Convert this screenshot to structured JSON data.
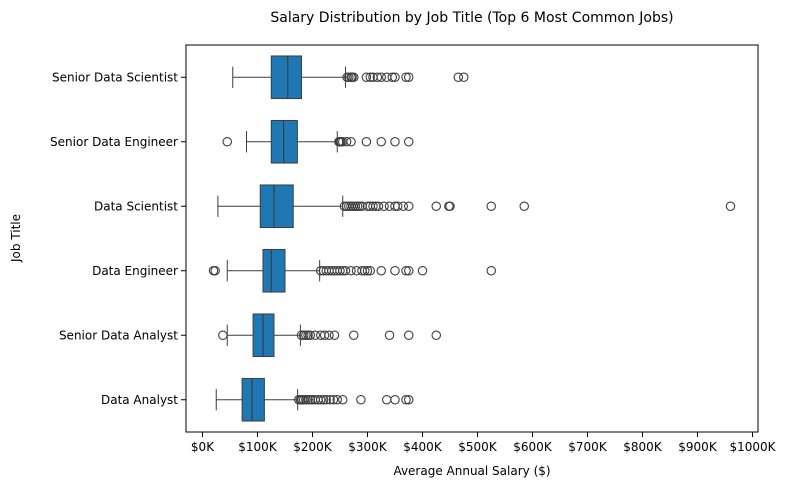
{
  "chart_data": {
    "type": "boxplot",
    "orientation": "horizontal",
    "title": "Salary Distribution by Job Title (Top 6 Most Common Jobs)",
    "xlabel": "Average Annual Salary ($)",
    "ylabel": "Job Title",
    "xlim": [
      -30000,
      1010000
    ],
    "xticks": [
      0,
      100000,
      200000,
      300000,
      400000,
      500000,
      600000,
      700000,
      800000,
      900000,
      1000000
    ],
    "xtick_labels": [
      "$0K",
      "$100K",
      "$200K",
      "$300K",
      "$400K",
      "$500K",
      "$600K",
      "$700K",
      "$800K",
      "$900K",
      "$1000K"
    ],
    "grid": false,
    "legend": null,
    "colors": {
      "box_fill": "#1f77b4",
      "line": "#3d3d3d",
      "outlier_edge": "#3d3d3d",
      "axis": "#000000"
    },
    "categories": [
      "Senior Data Scientist",
      "Senior Data Engineer",
      "Data Scientist",
      "Data Engineer",
      "Senior Data Analyst",
      "Data Analyst"
    ],
    "series": [
      {
        "category": "Senior Data Scientist",
        "whisker_low": 55000,
        "q1": 125000,
        "median": 155000,
        "q3": 180000,
        "whisker_high": 260000,
        "outliers": [
          263000,
          266000,
          270000,
          272000,
          275000,
          298000,
          305000,
          310000,
          318000,
          325000,
          335000,
          345000,
          350000,
          370000,
          375000,
          465000,
          475000
        ]
      },
      {
        "category": "Senior Data Engineer",
        "whisker_low": 80000,
        "q1": 125000,
        "median": 147500,
        "q3": 172500,
        "whisker_high": 245000,
        "outliers": [
          45000,
          248000,
          250000,
          252000,
          255000,
          262000,
          270000,
          298000,
          325000,
          350000,
          375000
        ]
      },
      {
        "category": "Data Scientist",
        "whisker_low": 28000,
        "q1": 105000,
        "median": 130000,
        "q3": 165000,
        "whisker_high": 255000,
        "outliers": [
          258000,
          262000,
          266000,
          270000,
          274000,
          278000,
          282000,
          286000,
          290000,
          300000,
          305000,
          310000,
          315000,
          320000,
          330000,
          340000,
          350000,
          355000,
          365000,
          375000,
          425000,
          448000,
          450000,
          525000,
          585000,
          960000
        ]
      },
      {
        "category": "Data Engineer",
        "whisker_low": 45000,
        "q1": 110000,
        "median": 125000,
        "q3": 150000,
        "whisker_high": 213000,
        "outliers": [
          20000,
          23000,
          215000,
          220000,
          225000,
          230000,
          235000,
          240000,
          245000,
          250000,
          255000,
          260000,
          270000,
          280000,
          290000,
          295000,
          300000,
          305000,
          325000,
          350000,
          370000,
          375000,
          400000,
          525000
        ]
      },
      {
        "category": "Senior Data Analyst",
        "whisker_low": 45000,
        "q1": 92000,
        "median": 110000,
        "q3": 130000,
        "whisker_high": 178000,
        "outliers": [
          37000,
          180000,
          184000,
          188000,
          192000,
          196000,
          205000,
          215000,
          222000,
          230000,
          240000,
          275000,
          340000,
          375000,
          425000
        ]
      },
      {
        "category": "Data Analyst",
        "whisker_low": 25000,
        "q1": 72000,
        "median": 90000,
        "q3": 112500,
        "whisker_high": 173000,
        "outliers": [
          175000,
          178000,
          181000,
          184000,
          188000,
          192000,
          196000,
          200000,
          205000,
          210000,
          215000,
          220000,
          225000,
          232000,
          238000,
          245000,
          255000,
          288000,
          335000,
          350000,
          370000,
          375000
        ]
      }
    ]
  }
}
